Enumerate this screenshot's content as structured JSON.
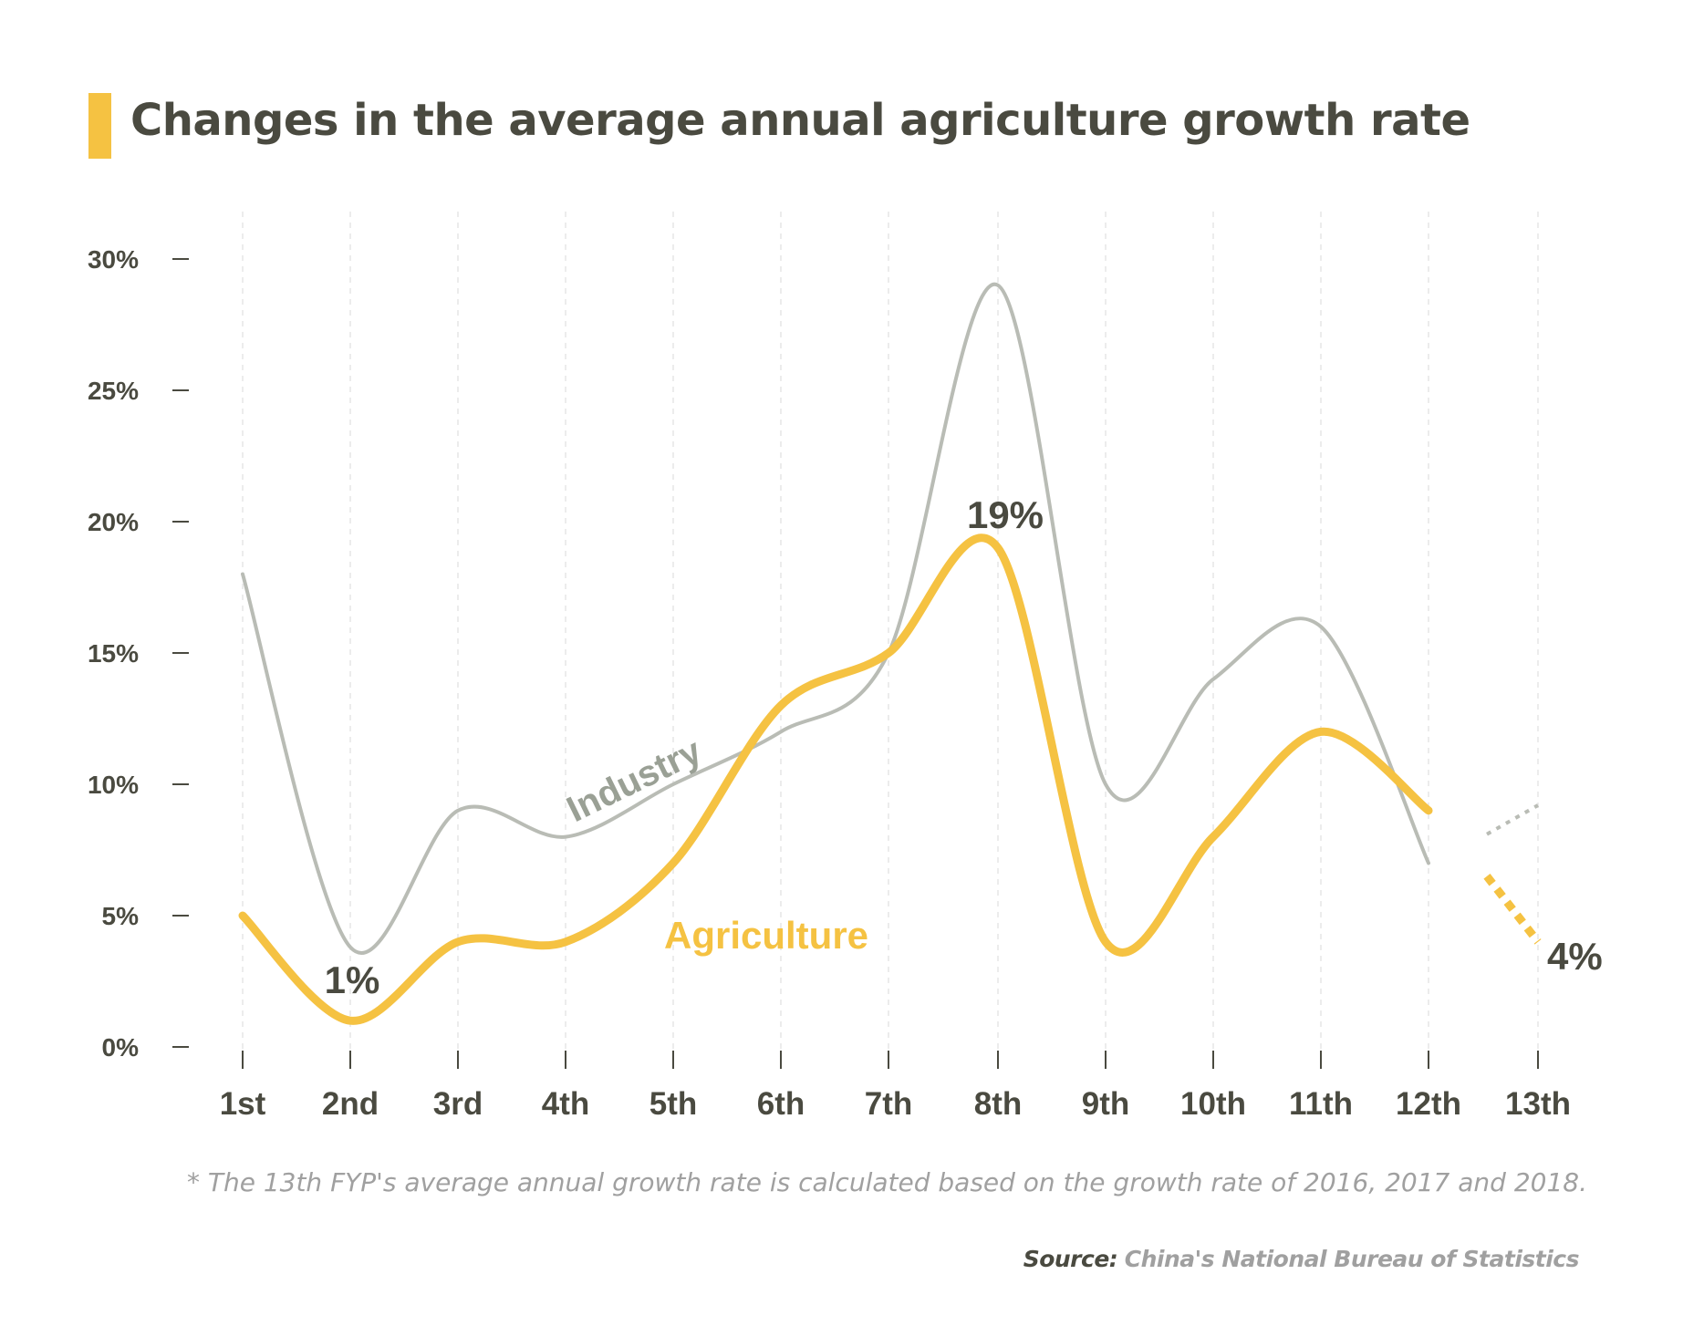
{
  "title": "Changes in the average annual agriculture growth rate",
  "footnote": "*  The 13th FYP's average annual growth rate is calculated based on the growth rate of 2016, 2017 and 2018.",
  "source": {
    "label": "Source:",
    "value": "China's National Bureau of Statistics"
  },
  "colors": {
    "accent": "#f5c242",
    "industry": "#b9bcb5",
    "industry_label": "#9aa095",
    "text_dark": "#4a4a40",
    "text_muted": "#a0a0a0"
  },
  "chart_data": {
    "type": "line",
    "categories": [
      "1st",
      "2nd",
      "3rd",
      "4th",
      "5th",
      "6th",
      "7th",
      "8th",
      "9th",
      "10th",
      "11th",
      "12th",
      "13th"
    ],
    "series": [
      {
        "name": "Industry",
        "values": [
          18,
          3.8,
          9,
          8,
          10,
          12,
          15,
          29,
          10,
          14,
          16,
          7,
          9.2
        ],
        "projected_from_index": 12
      },
      {
        "name": "Agriculture",
        "values": [
          5,
          1,
          4,
          4,
          7,
          13,
          15,
          19,
          4,
          8,
          12,
          9,
          4
        ],
        "projected_from_index": 12
      }
    ],
    "y_ticks": [
      "0%",
      "5%",
      "10%",
      "15%",
      "20%",
      "25%",
      "30%"
    ],
    "ylim": [
      0,
      30
    ],
    "annotations": [
      {
        "text": "1%",
        "series": "Agriculture",
        "index": 1
      },
      {
        "text": "19%",
        "series": "Agriculture",
        "index": 7
      },
      {
        "text": "4%",
        "series": "Agriculture",
        "index": 12
      }
    ],
    "grid": "vertical dashed",
    "xlabel": "",
    "ylabel": ""
  }
}
